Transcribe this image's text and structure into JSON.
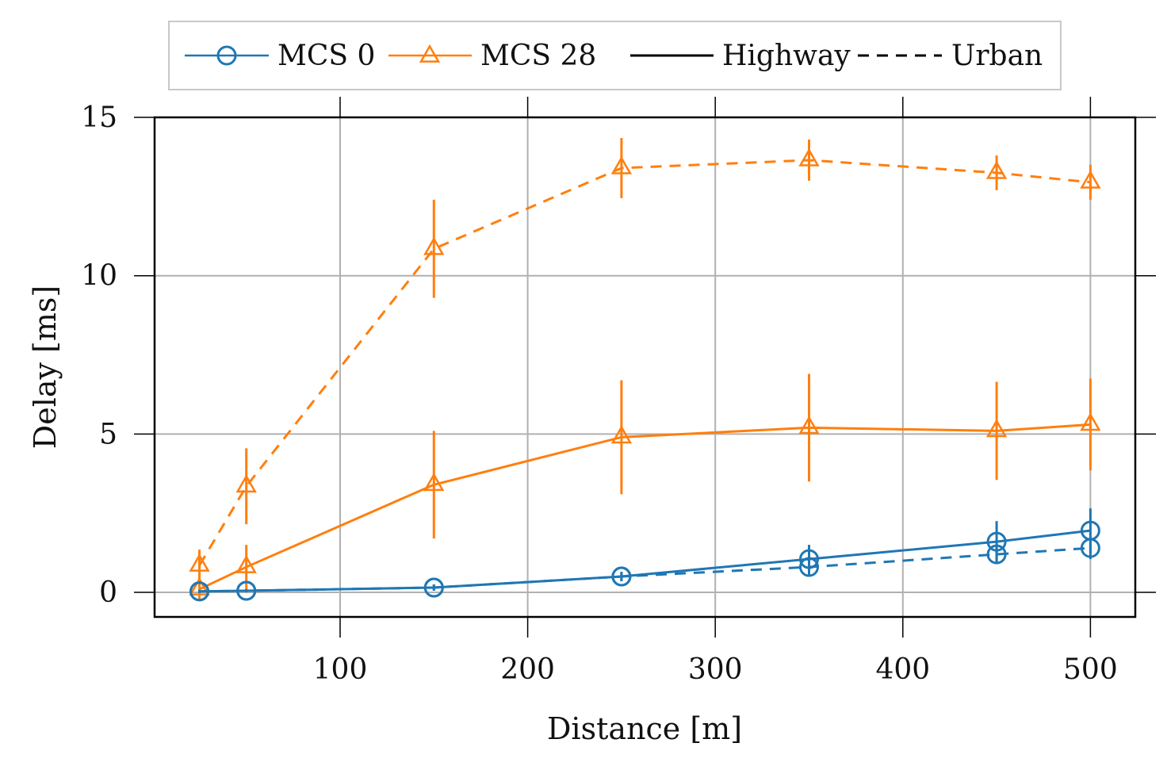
{
  "chart_data": {
    "type": "line",
    "title": "",
    "xlabel": "Distance [m]",
    "ylabel": "Delay [ms]",
    "xlim": [
      0,
      525
    ],
    "ylim": [
      -0.8,
      15
    ],
    "xticks": [
      100,
      200,
      300,
      400,
      500
    ],
    "yticks": [
      0,
      5,
      10,
      15
    ],
    "grid": true,
    "legend_position": "top-center-outside",
    "legend": [
      {
        "label": "MCS 0",
        "kind": "marker",
        "marker": "circle",
        "color": "#1f77b4"
      },
      {
        "label": "MCS 28",
        "kind": "marker",
        "marker": "triangle",
        "color": "#ff7f0e"
      },
      {
        "label": "Highway",
        "kind": "line",
        "style": "solid",
        "color": "#000000"
      },
      {
        "label": "Urban",
        "kind": "line",
        "style": "dashed",
        "color": "#000000"
      }
    ],
    "x": [
      25,
      50,
      150,
      250,
      350,
      450,
      500
    ],
    "series": [
      {
        "name": "MCS 0 Highway",
        "mcs": "MCS 0",
        "scenario": "Highway",
        "color": "#1f77b4",
        "marker": "circle",
        "style": "solid",
        "values": [
          0.03,
          0.05,
          0.15,
          0.5,
          1.05,
          1.6,
          1.95
        ],
        "errors": [
          0.05,
          0.05,
          0.1,
          0.15,
          0.45,
          0.65,
          0.7
        ]
      },
      {
        "name": "MCS 0 Urban",
        "mcs": "MCS 0",
        "scenario": "Urban",
        "color": "#1f77b4",
        "marker": "circle",
        "style": "dashed",
        "values": [
          0.03,
          0.05,
          0.15,
          0.5,
          0.8,
          1.2,
          1.4
        ],
        "errors": [
          0.05,
          0.05,
          0.1,
          0.15,
          0.3,
          0.3,
          0.35
        ]
      },
      {
        "name": "MCS 28 Highway",
        "mcs": "MCS 28",
        "scenario": "Highway",
        "color": "#ff7f0e",
        "marker": "triangle",
        "style": "solid",
        "values": [
          0.1,
          0.8,
          3.4,
          4.9,
          5.2,
          5.1,
          5.3
        ],
        "errors": [
          0.3,
          0.7,
          1.7,
          1.8,
          1.7,
          1.55,
          1.45
        ]
      },
      {
        "name": "MCS 28 Urban",
        "mcs": "MCS 28",
        "scenario": "Urban",
        "color": "#ff7f0e",
        "marker": "triangle",
        "style": "dashed",
        "values": [
          0.85,
          3.35,
          10.85,
          13.4,
          13.65,
          13.25,
          12.95
        ],
        "errors": [
          0.5,
          1.2,
          1.55,
          0.95,
          0.65,
          0.55,
          0.55
        ]
      }
    ]
  }
}
